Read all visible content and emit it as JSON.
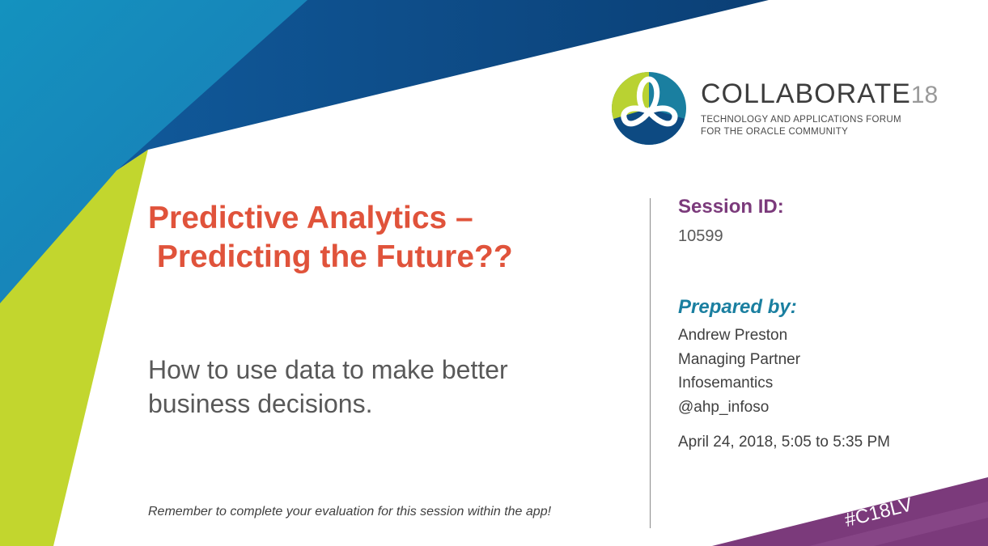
{
  "slide": {
    "title_line1": "Predictive Analytics –",
    "title_line2": " Predicting the Future??",
    "subtitle": "How to use  data to make better business decisions.",
    "reminder": "Remember to complete your evaluation for this session within the app!"
  },
  "session": {
    "id_label": "Session ID:",
    "id_value": "10599",
    "prepared_label": "Prepared by:",
    "presenter": [
      "Andrew Preston",
      "Managing Partner",
      "Infosemantics",
      "@ahp_infoso"
    ],
    "date_time": "April 24, 2018, 5:05 to 5:35 PM"
  },
  "logo": {
    "name": "COLLABORATE",
    "year": "18",
    "tagline1": "TECHNOLOGY AND APPLICATIONS FORUM",
    "tagline2": "FOR THE ORACLE COMMUNITY"
  },
  "hashtag": "#C18LV",
  "colors": {
    "title": "#e0533b",
    "session_label": "#7b3a7b",
    "prepared_label": "#1a7fa0",
    "navy": "#0d4a82",
    "blue": "#1b8cc0",
    "green": "#c2d62e",
    "purple": "#7b3a7b"
  }
}
